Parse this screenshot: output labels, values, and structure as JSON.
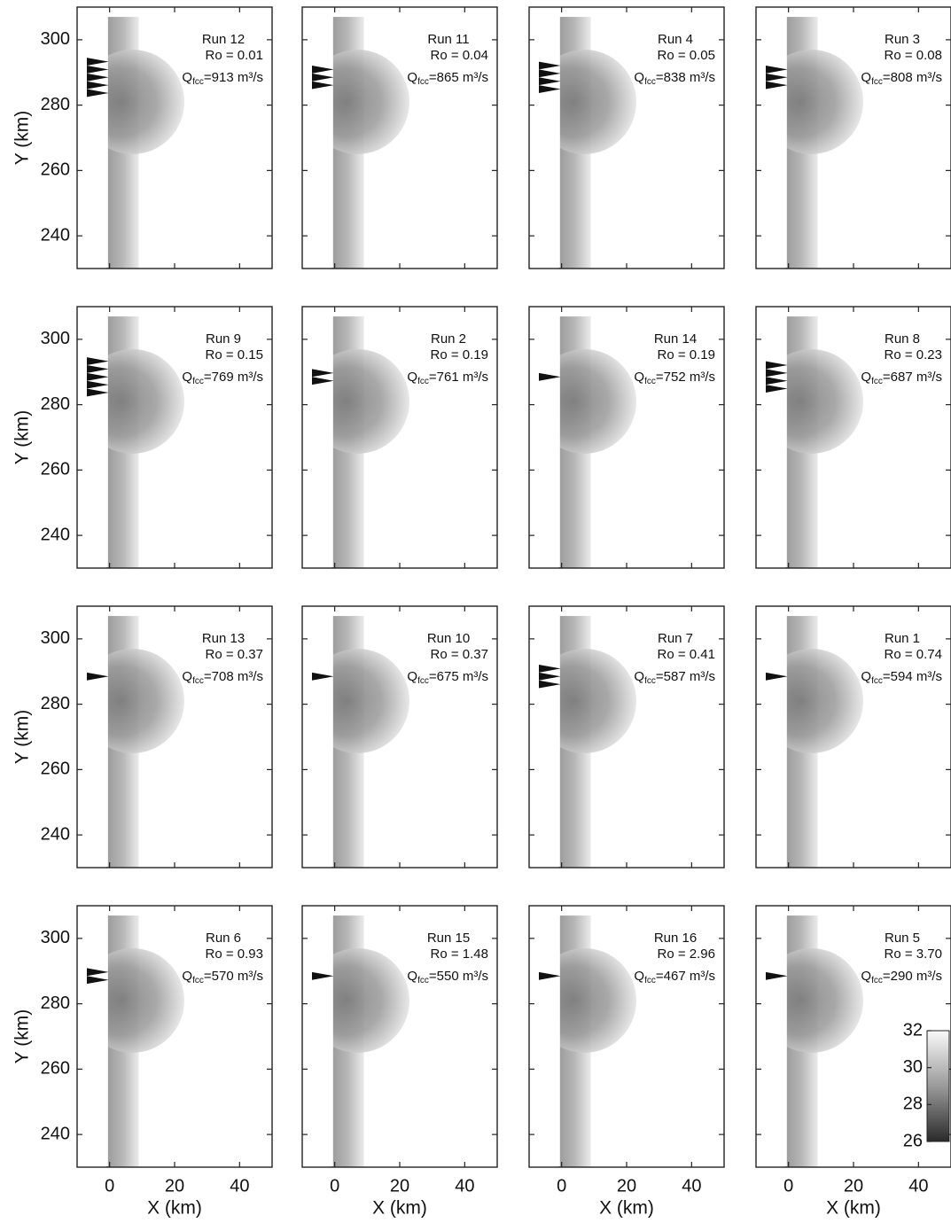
{
  "chart_data": [
    {
      "type": "heatmap",
      "run": "Run 12",
      "ro": "Ro = 0.01",
      "q": "Q",
      "q_sub": "fcc",
      "q_value": "=913 m³/s",
      "inflow_arrows": 5,
      "ylabel": "Y (km)",
      "xlim": [
        -10,
        50
      ],
      "ylim": [
        230,
        310
      ],
      "xticks": [
        0,
        20,
        40
      ],
      "yticks": [
        240,
        260,
        280,
        300
      ]
    },
    {
      "type": "heatmap",
      "run": "Run 11",
      "ro": "Ro = 0.04",
      "q": "Q",
      "q_sub": "fcc",
      "q_value": "=865 m³/s",
      "inflow_arrows": 3,
      "xlim": [
        -10,
        50
      ],
      "ylim": [
        230,
        310
      ],
      "xticks": [
        0,
        20,
        40
      ],
      "yticks": [
        240,
        260,
        280,
        300
      ]
    },
    {
      "type": "heatmap",
      "run": "Run 4",
      "ro": "Ro = 0.05",
      "q": "Q",
      "q_sub": "fcc",
      "q_value": "=838 m³/s",
      "inflow_arrows": 4,
      "xlim": [
        -10,
        50
      ],
      "ylim": [
        230,
        310
      ],
      "xticks": [
        0,
        20,
        40
      ],
      "yticks": [
        240,
        260,
        280,
        300
      ]
    },
    {
      "type": "heatmap",
      "run": "Run 3",
      "ro": "Ro = 0.08",
      "q": "Q",
      "q_sub": "fcc",
      "q_value": "=808 m³/s",
      "inflow_arrows": 3,
      "xlim": [
        -10,
        50
      ],
      "ylim": [
        230,
        310
      ],
      "xticks": [
        0,
        20,
        40
      ],
      "yticks": [
        240,
        260,
        280,
        300
      ]
    },
    {
      "type": "heatmap",
      "run": "Run 9",
      "ro": "Ro = 0.15",
      "q": "Q",
      "q_sub": "fcc",
      "q_value": "=769 m³/s",
      "inflow_arrows": 5,
      "ylabel": "Y (km)",
      "xlim": [
        -10,
        50
      ],
      "ylim": [
        230,
        310
      ],
      "xticks": [
        0,
        20,
        40
      ],
      "yticks": [
        240,
        260,
        280,
        300
      ]
    },
    {
      "type": "heatmap",
      "run": "Run 2",
      "ro": "Ro = 0.19",
      "q": "Q",
      "q_sub": "fcc",
      "q_value": "=761 m³/s",
      "inflow_arrows": 2,
      "xlim": [
        -10,
        50
      ],
      "ylim": [
        230,
        310
      ],
      "xticks": [
        0,
        20,
        40
      ],
      "yticks": [
        240,
        260,
        280,
        300
      ]
    },
    {
      "type": "heatmap",
      "run": "Run 14",
      "ro": "Ro = 0.19",
      "q": "Q",
      "q_sub": "fcc",
      "q_value": "=752 m³/s",
      "inflow_arrows": 1,
      "xlim": [
        -10,
        50
      ],
      "ylim": [
        230,
        310
      ],
      "xticks": [
        0,
        20,
        40
      ],
      "yticks": [
        240,
        260,
        280,
        300
      ]
    },
    {
      "type": "heatmap",
      "run": "Run 8",
      "ro": "Ro = 0.23",
      "q": "Q",
      "q_sub": "fcc",
      "q_value": "=687 m³/s",
      "inflow_arrows": 4,
      "xlim": [
        -10,
        50
      ],
      "ylim": [
        230,
        310
      ],
      "xticks": [
        0,
        20,
        40
      ],
      "yticks": [
        240,
        260,
        280,
        300
      ]
    },
    {
      "type": "heatmap",
      "run": "Run 13",
      "ro": "Ro = 0.37",
      "q": "Q",
      "q_sub": "fcc",
      "q_value": "=708 m³/s",
      "inflow_arrows": 1,
      "ylabel": "Y (km)",
      "xlim": [
        -10,
        50
      ],
      "ylim": [
        230,
        310
      ],
      "xticks": [
        0,
        20,
        40
      ],
      "yticks": [
        240,
        260,
        280,
        300
      ]
    },
    {
      "type": "heatmap",
      "run": "Run 10",
      "ro": "Ro = 0.37",
      "q": "Q",
      "q_sub": "fcc",
      "q_value": "=675 m³/s",
      "inflow_arrows": 1,
      "xlim": [
        -10,
        50
      ],
      "ylim": [
        230,
        310
      ],
      "xticks": [
        0,
        20,
        40
      ],
      "yticks": [
        240,
        260,
        280,
        300
      ]
    },
    {
      "type": "heatmap",
      "run": "Run 7",
      "ro": "Ro = 0.41",
      "q": "Q",
      "q_sub": "fcc",
      "q_value": "=587 m³/s",
      "inflow_arrows": 3,
      "xlim": [
        -10,
        50
      ],
      "ylim": [
        230,
        310
      ],
      "xticks": [
        0,
        20,
        40
      ],
      "yticks": [
        240,
        260,
        280,
        300
      ]
    },
    {
      "type": "heatmap",
      "run": "Run 1",
      "ro": "Ro = 0.74",
      "q": "Q",
      "q_sub": "fcc",
      "q_value": "=594 m³/s",
      "inflow_arrows": 1,
      "xlim": [
        -10,
        50
      ],
      "ylim": [
        230,
        310
      ],
      "xticks": [
        0,
        20,
        40
      ],
      "yticks": [
        240,
        260,
        280,
        300
      ]
    },
    {
      "type": "heatmap",
      "run": "Run 6",
      "ro": "Ro = 0.93",
      "q": "Q",
      "q_sub": "fcc",
      "q_value": "=570 m³/s",
      "inflow_arrows": 2,
      "ylabel": "Y (km)",
      "xlabel": "X (km)",
      "xlim": [
        -10,
        50
      ],
      "ylim": [
        230,
        310
      ],
      "xticks": [
        0,
        20,
        40
      ],
      "yticks": [
        240,
        260,
        280,
        300
      ]
    },
    {
      "type": "heatmap",
      "run": "Run 15",
      "ro": "Ro = 1.48",
      "q": "Q",
      "q_sub": "fcc",
      "q_value": "=550 m³/s",
      "inflow_arrows": 1,
      "xlabel": "X (km)",
      "xlim": [
        -10,
        50
      ],
      "ylim": [
        230,
        310
      ],
      "xticks": [
        0,
        20,
        40
      ],
      "yticks": [
        240,
        260,
        280,
        300
      ]
    },
    {
      "type": "heatmap",
      "run": "Run 16",
      "ro": "Ro = 2.96",
      "q": "Q",
      "q_sub": "fcc",
      "q_value": "=467 m³/s",
      "inflow_arrows": 1,
      "xlabel": "X (km)",
      "xlim": [
        -10,
        50
      ],
      "ylim": [
        230,
        310
      ],
      "xticks": [
        0,
        20,
        40
      ],
      "yticks": [
        240,
        260,
        280,
        300
      ]
    },
    {
      "type": "heatmap",
      "run": "Run 5",
      "ro": "Ro = 3.70",
      "q": "Q",
      "q_sub": "fcc",
      "q_value": "=290 m³/s",
      "inflow_arrows": 1,
      "xlabel": "X (km)",
      "xlim": [
        -10,
        50
      ],
      "ylim": [
        230,
        310
      ],
      "xticks": [
        0,
        20,
        40
      ],
      "yticks": [
        240,
        260,
        280,
        300
      ],
      "colorbar": {
        "lim": [
          26,
          32
        ],
        "ticks": [
          26,
          28,
          30,
          32
        ]
      }
    }
  ]
}
